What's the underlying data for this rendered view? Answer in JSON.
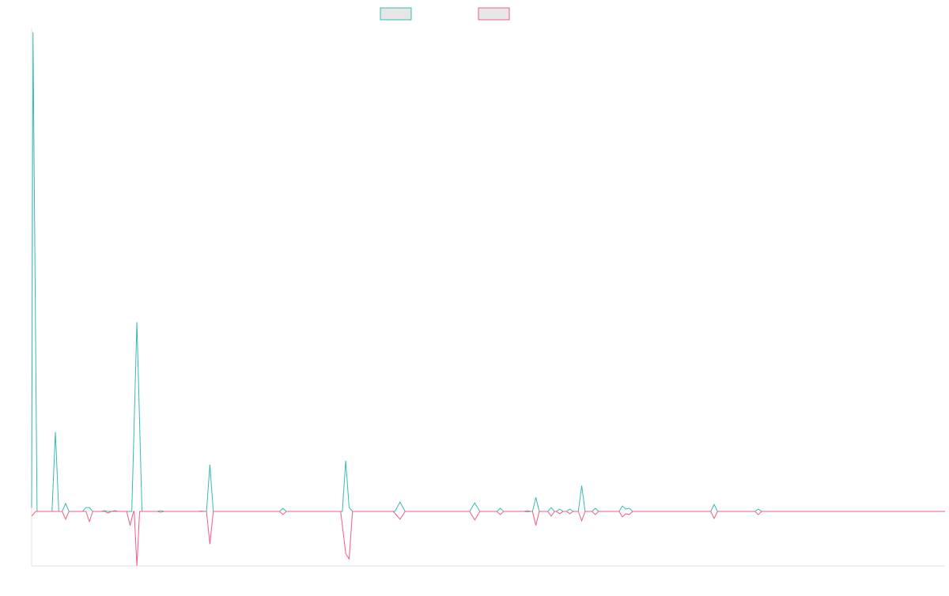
{
  "chart_data": {
    "type": "line",
    "title": "",
    "xlabel": "",
    "ylabel": "",
    "grid": false,
    "legend_position": "top-center",
    "legend": [
      {
        "name": "",
        "color": "#36b9b4",
        "fill": "#e6e6e6"
      },
      {
        "name": "",
        "color": "#f25c84",
        "fill": "#e6e6e6"
      }
    ],
    "ylim": [
      -7,
      62
    ],
    "x_count": 270,
    "series": [
      {
        "name": "",
        "color": "#36b9b4",
        "points": [
          [
            0,
            0.5
          ],
          [
            0.4,
            61.5
          ],
          [
            1.6,
            0
          ],
          [
            6,
            0
          ],
          [
            7,
            10.2
          ],
          [
            8,
            0
          ],
          [
            9,
            0
          ],
          [
            10,
            1
          ],
          [
            11,
            0
          ],
          [
            15,
            0
          ],
          [
            16,
            0.5
          ],
          [
            17,
            0.5
          ],
          [
            18,
            0
          ],
          [
            20.5,
            0
          ],
          [
            21.5,
            0.1
          ],
          [
            22.5,
            0
          ],
          [
            23.5,
            0
          ],
          [
            24.5,
            0.1
          ],
          [
            25.5,
            0
          ],
          [
            29.5,
            0
          ],
          [
            31,
            24.3
          ],
          [
            32.5,
            0
          ],
          [
            37,
            0
          ],
          [
            38,
            0.1
          ],
          [
            39,
            0
          ],
          [
            49,
            0
          ],
          [
            50,
            0.05
          ],
          [
            51,
            0
          ],
          [
            51.5,
            0
          ],
          [
            52.5,
            6
          ],
          [
            53.5,
            0
          ],
          [
            73,
            0
          ],
          [
            74,
            0.4
          ],
          [
            75,
            0
          ],
          [
            91.5,
            0
          ],
          [
            92.5,
            6.5
          ],
          [
            93.5,
            0.5
          ],
          [
            94.5,
            0
          ],
          [
            107,
            0
          ],
          [
            108.5,
            1.2
          ],
          [
            110,
            0
          ],
          [
            129,
            0
          ],
          [
            130.5,
            1.1
          ],
          [
            132,
            0
          ],
          [
            137,
            0
          ],
          [
            138,
            0.4
          ],
          [
            139,
            0
          ],
          [
            145,
            0
          ],
          [
            146,
            0.1
          ],
          [
            147,
            0
          ],
          [
            147.5,
            0
          ],
          [
            148.5,
            1.8
          ],
          [
            149.5,
            0
          ],
          [
            152,
            0
          ],
          [
            153,
            0.5
          ],
          [
            154,
            0
          ],
          [
            154.5,
            0
          ],
          [
            155.5,
            0.3
          ],
          [
            156.5,
            0
          ],
          [
            157.5,
            0
          ],
          [
            158.5,
            0.3
          ],
          [
            159.5,
            0
          ],
          [
            161,
            0
          ],
          [
            162,
            3.3
          ],
          [
            163,
            0
          ],
          [
            165,
            0
          ],
          [
            166,
            0.4
          ],
          [
            167,
            0
          ],
          [
            173,
            0
          ],
          [
            174,
            0.7
          ],
          [
            175,
            0.3
          ],
          [
            176,
            0.4
          ],
          [
            177,
            0
          ],
          [
            200,
            0
          ],
          [
            201,
            0.9
          ],
          [
            202,
            0
          ],
          [
            213,
            0
          ],
          [
            214,
            0.3
          ],
          [
            215,
            0
          ],
          [
            269,
            0
          ]
        ]
      },
      {
        "name": "",
        "color": "#f25c84",
        "points": [
          [
            0,
            -0.6
          ],
          [
            1.2,
            0
          ],
          [
            9,
            0
          ],
          [
            10,
            -1
          ],
          [
            11,
            0
          ],
          [
            16,
            0
          ],
          [
            17,
            -1.3
          ],
          [
            18,
            0
          ],
          [
            21.5,
            0
          ],
          [
            22.5,
            -0.2
          ],
          [
            23.5,
            0
          ],
          [
            28,
            0
          ],
          [
            29,
            -1.8
          ],
          [
            30,
            0
          ],
          [
            30.2,
            0
          ],
          [
            31,
            -7
          ],
          [
            31.8,
            0
          ],
          [
            37,
            0
          ],
          [
            38,
            -0.1
          ],
          [
            39,
            0
          ],
          [
            51.5,
            0
          ],
          [
            52.5,
            -4.2
          ],
          [
            53.5,
            0
          ],
          [
            73,
            0
          ],
          [
            74,
            -0.4
          ],
          [
            75,
            0
          ],
          [
            91,
            0
          ],
          [
            92.5,
            -5.4
          ],
          [
            93.5,
            -6.1
          ],
          [
            94.5,
            0
          ],
          [
            106.5,
            0
          ],
          [
            108.5,
            -1
          ],
          [
            110,
            0
          ],
          [
            129,
            0
          ],
          [
            130.5,
            -1.1
          ],
          [
            132,
            0
          ],
          [
            137,
            0
          ],
          [
            138,
            -0.4
          ],
          [
            139,
            0
          ],
          [
            145,
            0
          ],
          [
            146,
            -0.05
          ],
          [
            147,
            0
          ],
          [
            147.5,
            0
          ],
          [
            148.5,
            -1.8
          ],
          [
            149.5,
            0
          ],
          [
            152,
            0
          ],
          [
            153,
            -0.6
          ],
          [
            154,
            0
          ],
          [
            154.5,
            0
          ],
          [
            155.5,
            -0.3
          ],
          [
            156.5,
            0
          ],
          [
            157.5,
            0
          ],
          [
            158.5,
            -0.3
          ],
          [
            159.5,
            0
          ],
          [
            161,
            0
          ],
          [
            162,
            -1.2
          ],
          [
            163,
            0
          ],
          [
            165,
            0
          ],
          [
            166,
            -0.4
          ],
          [
            167,
            0
          ],
          [
            173,
            0
          ],
          [
            174,
            -0.7
          ],
          [
            175,
            -0.3
          ],
          [
            176,
            -0.4
          ],
          [
            177,
            0
          ],
          [
            200,
            0
          ],
          [
            201,
            -0.9
          ],
          [
            202,
            0
          ],
          [
            213,
            0
          ],
          [
            214,
            -0.4
          ],
          [
            215,
            0
          ],
          [
            269,
            0
          ]
        ]
      }
    ]
  }
}
